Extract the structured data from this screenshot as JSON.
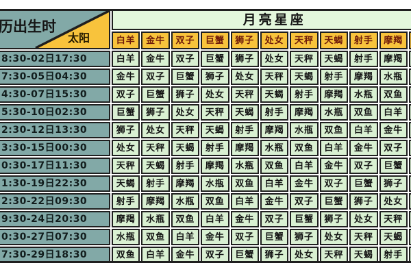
{
  "colors": {
    "teal": "#82A9A7",
    "orange": "#F8C33C",
    "green": "#D9F0D2",
    "pale": "#E3F7DC",
    "headtext": "#6E1A0A",
    "border": "#1F1F1F"
  },
  "chart_data": {
    "type": "table",
    "title": "月亮星座",
    "corner": {
      "rows_label": "历出生时",
      "cols_label": "太阳"
    },
    "columns": [
      "白羊",
      "金牛",
      "双子",
      "巨蟹",
      "狮子",
      "处女",
      "天秤",
      "天蝎",
      "射手",
      "摩羯"
    ],
    "rows": [
      {
        "time": "8:30-02日17:30",
        "values": [
          "白羊",
          "金牛",
          "双子",
          "巨蟹",
          "狮子",
          "处女",
          "天秤",
          "天蝎",
          "射手",
          "摩羯"
        ]
      },
      {
        "time": "7:30-05日04:30",
        "values": [
          "金牛",
          "双子",
          "巨蟹",
          "狮子",
          "处女",
          "天秤",
          "天蝎",
          "射手",
          "摩羯",
          "水瓶"
        ]
      },
      {
        "time": "4:30-07日15:30",
        "values": [
          "双子",
          "巨蟹",
          "狮子",
          "处女",
          "天秤",
          "天蝎",
          "射手",
          "摩羯",
          "水瓶",
          "双鱼"
        ]
      },
      {
        "time": "5:30-10日02:30",
        "values": [
          "巨蟹",
          "狮子",
          "处女",
          "天秤",
          "天蝎",
          "射手",
          "摩羯",
          "水瓶",
          "双鱼",
          "白羊"
        ]
      },
      {
        "time": "2:30-12日13:30",
        "values": [
          "狮子",
          "处女",
          "天秤",
          "天蝎",
          "射手",
          "摩羯",
          "水瓶",
          "双鱼",
          "白羊",
          "金牛"
        ]
      },
      {
        "time": "3:30-15日00:30",
        "values": [
          "处女",
          "天秤",
          "天蝎",
          "射手",
          "摩羯",
          "水瓶",
          "双鱼",
          "白羊",
          "金牛",
          "双子"
        ]
      },
      {
        "time": "0:30-17日11:30",
        "values": [
          "天秤",
          "天蝎",
          "射手",
          "摩羯",
          "水瓶",
          "双鱼",
          "白羊",
          "金牛",
          "双子",
          "巨蟹"
        ]
      },
      {
        "time": "1:30-19日22:30",
        "values": [
          "天蝎",
          "射手",
          "摩羯",
          "水瓶",
          "双鱼",
          "白羊",
          "金牛",
          "双子",
          "巨蟹",
          "狮子"
        ]
      },
      {
        "time": "2:30-22日09:30",
        "values": [
          "射手",
          "摩羯",
          "水瓶",
          "双鱼",
          "白羊",
          "金牛",
          "双子",
          "巨蟹",
          "狮子",
          "处女"
        ]
      },
      {
        "time": "9:30-24日20:30",
        "values": [
          "摩羯",
          "水瓶",
          "双鱼",
          "白羊",
          "金牛",
          "双子",
          "巨蟹",
          "狮子",
          "处女",
          "天秤"
        ]
      },
      {
        "time": "0:30-27日07:30",
        "values": [
          "水瓶",
          "双鱼",
          "白羊",
          "金牛",
          "双子",
          "巨蟹",
          "狮子",
          "处女",
          "天秤",
          "天蝎"
        ]
      },
      {
        "time": "7:30-29日18:30",
        "values": [
          "双鱼",
          "白羊",
          "金牛",
          "双子",
          "巨蟹",
          "狮子",
          "处女",
          "天秤",
          "天蝎",
          "射手"
        ]
      }
    ]
  }
}
